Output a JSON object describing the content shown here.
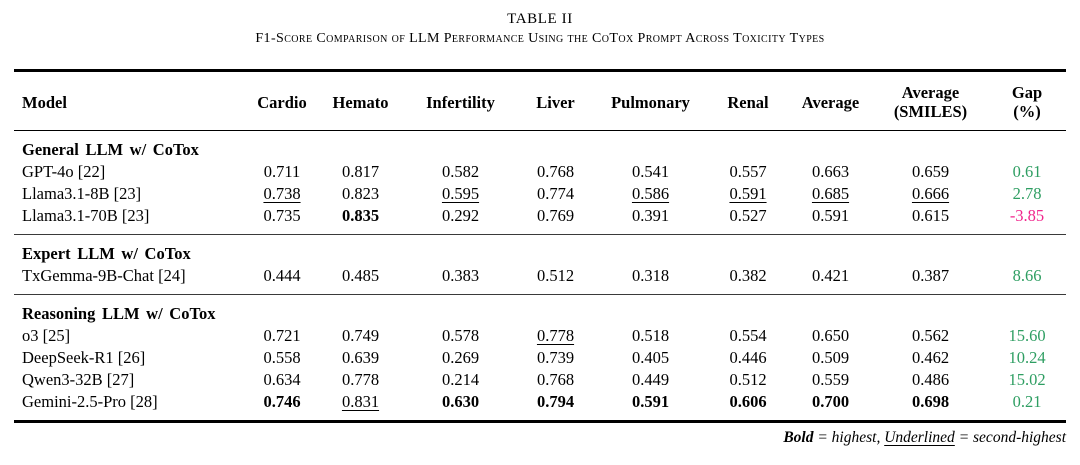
{
  "caption": {
    "line1": "TABLE II",
    "line2": "F1-Score Comparison of LLM Performance Using the CoTox Prompt Across Toxicity Types"
  },
  "colors": {
    "positive_gap": "#2e9e62",
    "negative_gap": "#f0258c",
    "rule": "#000000"
  },
  "table": {
    "headers": [
      {
        "lines": [
          "Model"
        ]
      },
      {
        "lines": [
          "Cardio"
        ]
      },
      {
        "lines": [
          "Hemato"
        ]
      },
      {
        "lines": [
          "Infertility"
        ]
      },
      {
        "lines": [
          "Liver"
        ]
      },
      {
        "lines": [
          "Pulmonary"
        ]
      },
      {
        "lines": [
          "Renal"
        ]
      },
      {
        "lines": [
          "Average"
        ]
      },
      {
        "lines": [
          "Average",
          "(SMILES)"
        ]
      },
      {
        "lines": [
          "Gap",
          "(%)"
        ]
      }
    ],
    "style_key": {
      "b": "bold = highest",
      "u": "underline = second-highest"
    },
    "sections": [
      {
        "title": "General LLM w/ CoTox",
        "rows": [
          {
            "model": "GPT-4o [22]",
            "cells": [
              {
                "v": "0.711"
              },
              {
                "v": "0.817"
              },
              {
                "v": "0.582"
              },
              {
                "v": "0.768"
              },
              {
                "v": "0.541"
              },
              {
                "v": "0.557"
              },
              {
                "v": "0.663"
              },
              {
                "v": "0.659"
              }
            ],
            "gap": {
              "v": "0.61",
              "tone": "positive"
            }
          },
          {
            "model": "Llama3.1-8B [23]",
            "cells": [
              {
                "v": "0.738",
                "s": "u"
              },
              {
                "v": "0.823"
              },
              {
                "v": "0.595",
                "s": "u"
              },
              {
                "v": "0.774"
              },
              {
                "v": "0.586",
                "s": "u"
              },
              {
                "v": "0.591",
                "s": "u"
              },
              {
                "v": "0.685",
                "s": "u"
              },
              {
                "v": "0.666",
                "s": "u"
              }
            ],
            "gap": {
              "v": "2.78",
              "tone": "positive"
            }
          },
          {
            "model": "Llama3.1-70B [23]",
            "cells": [
              {
                "v": "0.735"
              },
              {
                "v": "0.835",
                "s": "b"
              },
              {
                "v": "0.292"
              },
              {
                "v": "0.769"
              },
              {
                "v": "0.391"
              },
              {
                "v": "0.527"
              },
              {
                "v": "0.591"
              },
              {
                "v": "0.615"
              }
            ],
            "gap": {
              "v": "-3.85",
              "tone": "negative"
            }
          }
        ]
      },
      {
        "title": "Expert LLM w/ CoTox",
        "rows": [
          {
            "model": "TxGemma-9B-Chat [24]",
            "cells": [
              {
                "v": "0.444"
              },
              {
                "v": "0.485"
              },
              {
                "v": "0.383"
              },
              {
                "v": "0.512"
              },
              {
                "v": "0.318"
              },
              {
                "v": "0.382"
              },
              {
                "v": "0.421"
              },
              {
                "v": "0.387"
              }
            ],
            "gap": {
              "v": "8.66",
              "tone": "positive"
            }
          }
        ]
      },
      {
        "title": "Reasoning LLM w/ CoTox",
        "rows": [
          {
            "model": "o3 [25]",
            "cells": [
              {
                "v": "0.721"
              },
              {
                "v": "0.749"
              },
              {
                "v": "0.578"
              },
              {
                "v": "0.778",
                "s": "u"
              },
              {
                "v": "0.518"
              },
              {
                "v": "0.554"
              },
              {
                "v": "0.650"
              },
              {
                "v": "0.562"
              }
            ],
            "gap": {
              "v": "15.60",
              "tone": "positive"
            }
          },
          {
            "model": "DeepSeek-R1 [26]",
            "cells": [
              {
                "v": "0.558"
              },
              {
                "v": "0.639"
              },
              {
                "v": "0.269"
              },
              {
                "v": "0.739"
              },
              {
                "v": "0.405"
              },
              {
                "v": "0.446"
              },
              {
                "v": "0.509"
              },
              {
                "v": "0.462"
              }
            ],
            "gap": {
              "v": "10.24",
              "tone": "positive"
            }
          },
          {
            "model": "Qwen3-32B [27]",
            "cells": [
              {
                "v": "0.634"
              },
              {
                "v": "0.778"
              },
              {
                "v": "0.214"
              },
              {
                "v": "0.768"
              },
              {
                "v": "0.449"
              },
              {
                "v": "0.512"
              },
              {
                "v": "0.559"
              },
              {
                "v": "0.486"
              }
            ],
            "gap": {
              "v": "15.02",
              "tone": "positive"
            }
          },
          {
            "model": "Gemini-2.5-Pro [28]",
            "cells": [
              {
                "v": "0.746",
                "s": "b"
              },
              {
                "v": "0.831",
                "s": "u"
              },
              {
                "v": "0.630",
                "s": "b"
              },
              {
                "v": "0.794",
                "s": "b"
              },
              {
                "v": "0.591",
                "s": "b"
              },
              {
                "v": "0.606",
                "s": "b"
              },
              {
                "v": "0.700",
                "s": "b"
              },
              {
                "v": "0.698",
                "s": "b"
              }
            ],
            "gap": {
              "v": "0.21",
              "tone": "positive"
            }
          }
        ]
      }
    ],
    "legend": {
      "bold_term": "Bold",
      "bold_def": " = highest, ",
      "underline_term": "Underlined",
      "underline_def": " = second-highest"
    }
  }
}
